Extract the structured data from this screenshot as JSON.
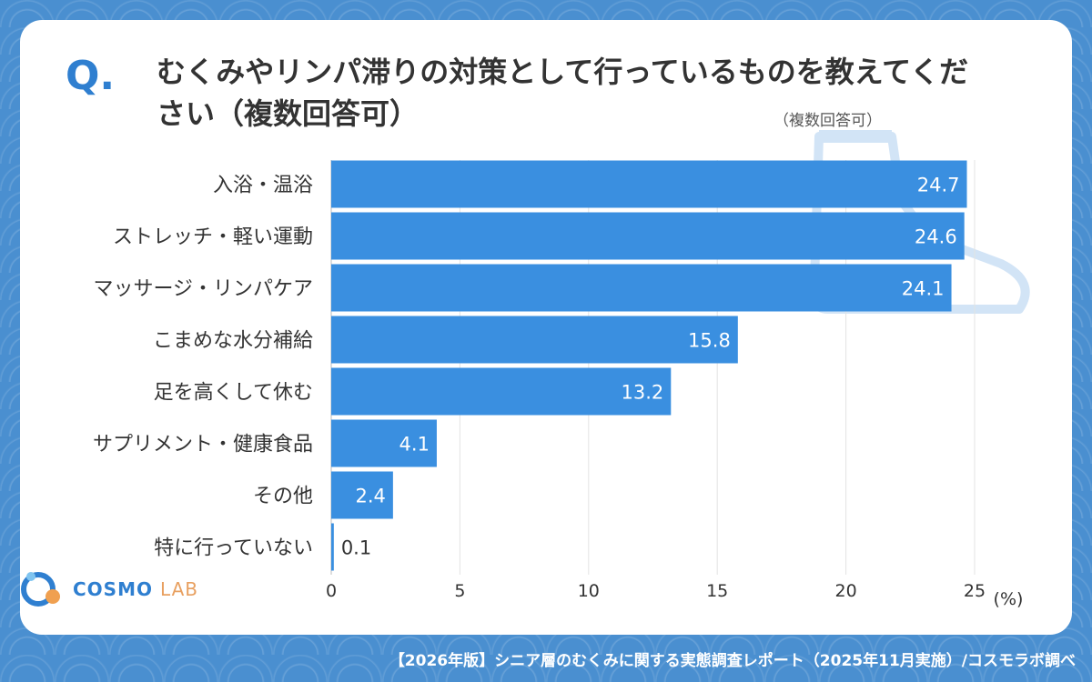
{
  "question": {
    "q_label": "Q.",
    "text": "むくみやリンパ滞りの対策として行っているものを教えてください（複数回答可）",
    "note": "（複数回答可）"
  },
  "chart_data": {
    "type": "bar",
    "orientation": "horizontal",
    "categories": [
      "入浴・温浴",
      "ストレッチ・軽い運動",
      "マッサージ・リンパケア",
      "こまめな水分補給",
      "足を高くして休む",
      "サプリメント・健康食品",
      "その他",
      "特に行っていない"
    ],
    "values": [
      24.7,
      24.6,
      24.1,
      15.8,
      13.2,
      4.1,
      2.4,
      0.1
    ],
    "value_labels": [
      "24.7",
      "24.6",
      "24.1",
      "15.8",
      "13.2",
      "4.1",
      "2.4",
      "0.1"
    ],
    "x_ticks": [
      "0",
      "5",
      "10",
      "15",
      "20",
      "25"
    ],
    "xlim": [
      0,
      25
    ],
    "unit": "(%)",
    "bar_color": "#3a8fe0"
  },
  "logo": {
    "cosmo": "COSMO",
    "lab": "LAB"
  },
  "footer": "【2026年版】シニア層のむくみに関する実態調査レポート（2025年11月実施）/コスモラボ調べ"
}
